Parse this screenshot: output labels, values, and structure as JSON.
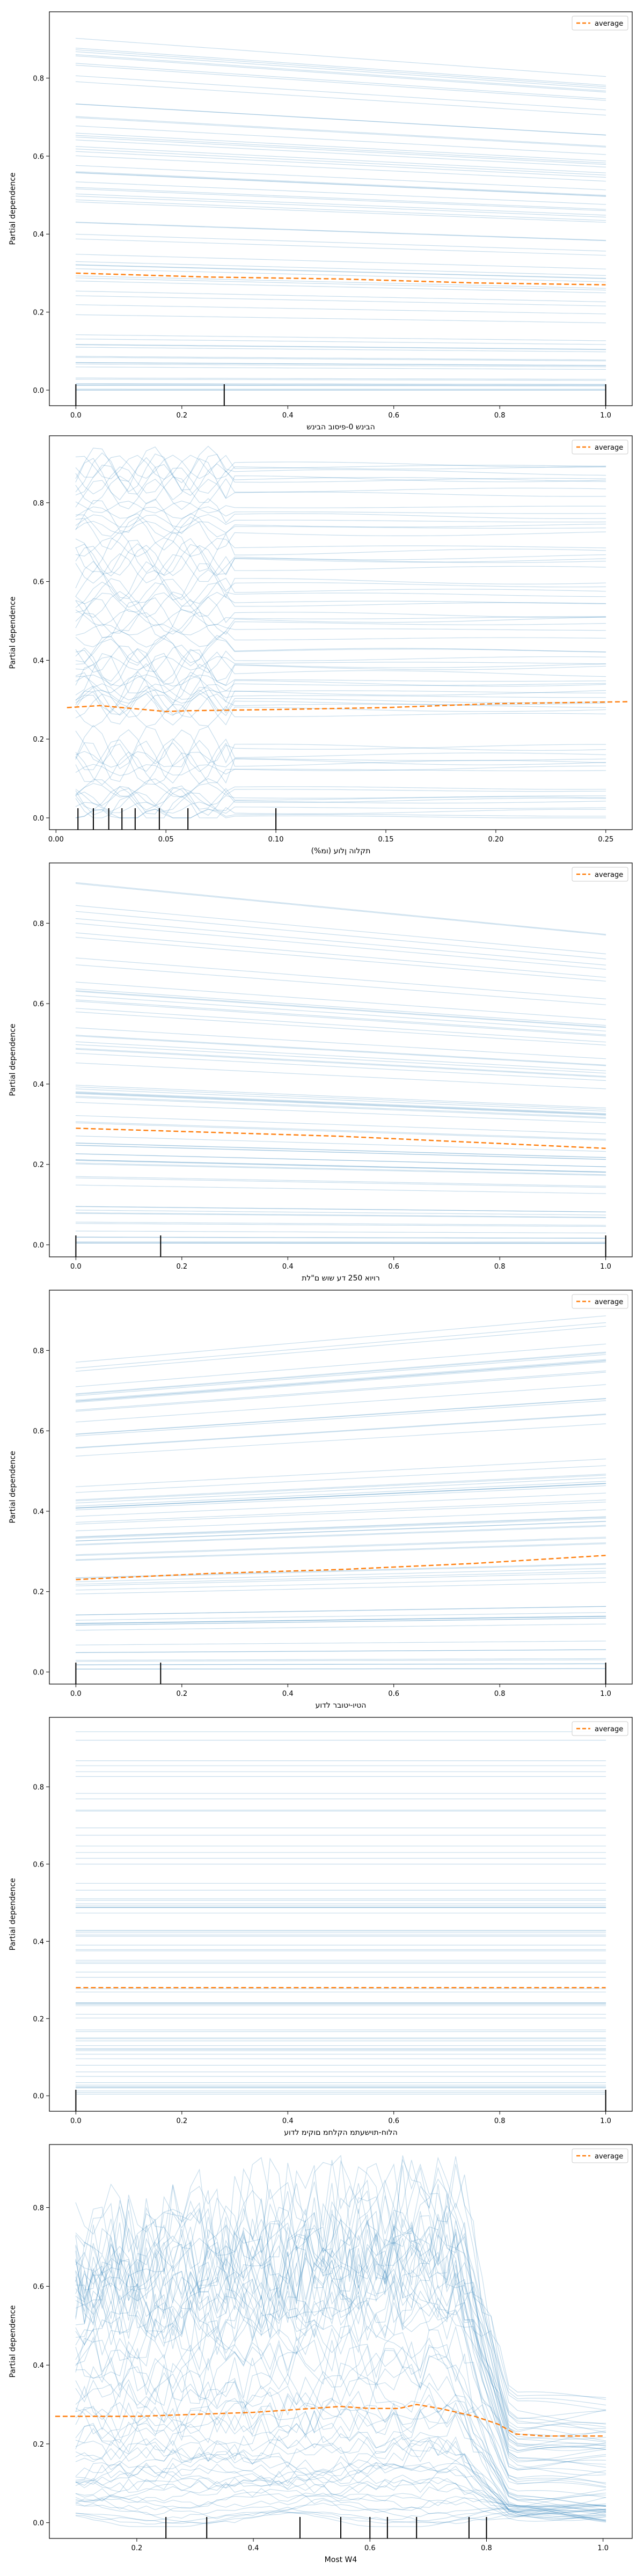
{
  "figure": {
    "legend_label": "average",
    "ylabel": "Partial dependence",
    "ice_color": "#1f77b4",
    "average_color": "#ff7f0e",
    "frame_color": "#000000"
  },
  "chart_data": [
    {
      "type": "line",
      "title": "",
      "xlabel": "הבינש 0-פיסוב הבינש",
      "ylabel": "Partial dependence",
      "xlim": [
        -0.05,
        1.05
      ],
      "ylim": [
        -0.04,
        0.97
      ],
      "xticks": [
        0.0,
        0.2,
        0.4,
        0.6,
        0.8,
        1.0
      ],
      "xtick_labels": [
        "0.0",
        "0.2",
        "0.4",
        "0.6",
        "0.8",
        "1.0"
      ],
      "yticks": [
        0.0,
        0.2,
        0.4,
        0.6,
        0.8
      ],
      "ytick_labels": [
        "0.0",
        "0.2",
        "0.4",
        "0.6",
        "0.8"
      ],
      "legend": "top-right",
      "grid": false,
      "rug": [
        0.0,
        0.28,
        1.0
      ],
      "average": {
        "name": "average",
        "x": [
          0.0,
          0.25,
          0.5,
          0.75,
          1.0
        ],
        "y": [
          0.3,
          0.29,
          0.285,
          0.275,
          0.27
        ]
      },
      "ice": {
        "count": 70,
        "start_range": [
          0.0,
          0.92
        ],
        "end_range": [
          0.0,
          0.82
        ],
        "shape": "linear"
      }
    },
    {
      "type": "line",
      "title": "",
      "xlabel": "(%ומ) תקלוה ןלוע",
      "ylabel": "Partial dependence",
      "xlim": [
        -0.003,
        0.262
      ],
      "ylim": [
        -0.03,
        0.97
      ],
      "xticks": [
        0.0,
        0.05,
        0.1,
        0.15,
        0.2,
        0.25
      ],
      "xtick_labels": [
        "0.00",
        "0.05",
        "0.10",
        "0.15",
        "0.20",
        "0.25"
      ],
      "yticks": [
        0.0,
        0.2,
        0.4,
        0.6,
        0.8
      ],
      "ytick_labels": [
        "0.0",
        "0.2",
        "0.4",
        "0.6",
        "0.8"
      ],
      "legend": "top-right",
      "grid": false,
      "rug": [
        0.01,
        0.017,
        0.024,
        0.03,
        0.036,
        0.047,
        0.06,
        0.1
      ],
      "average": {
        "name": "average",
        "x": [
          0.005,
          0.02,
          0.03,
          0.04,
          0.05,
          0.06,
          0.1,
          0.15,
          0.2,
          0.26
        ],
        "y": [
          0.28,
          0.285,
          0.28,
          0.275,
          0.27,
          0.272,
          0.275,
          0.28,
          0.29,
          0.295
        ]
      },
      "ice": {
        "count": 70,
        "start_range": [
          0.0,
          0.9
        ],
        "end_range": [
          0.0,
          0.9
        ],
        "shape": "wavy-left"
      }
    },
    {
      "type": "line",
      "title": "",
      "xlabel": "רויוא 250 דע שוש ם\"לת",
      "ylabel": "Partial dependence",
      "xlim": [
        -0.05,
        1.05
      ],
      "ylim": [
        -0.03,
        0.95
      ],
      "xticks": [
        0.0,
        0.2,
        0.4,
        0.6,
        0.8,
        1.0
      ],
      "xtick_labels": [
        "0.0",
        "0.2",
        "0.4",
        "0.6",
        "0.8",
        "1.0"
      ],
      "yticks": [
        0.0,
        0.2,
        0.4,
        0.6,
        0.8
      ],
      "ytick_labels": [
        "0.0",
        "0.2",
        "0.4",
        "0.6",
        "0.8"
      ],
      "legend": "top-right",
      "grid": false,
      "rug": [
        0.0,
        0.16,
        1.0
      ],
      "average": {
        "name": "average",
        "x": [
          0.0,
          0.25,
          0.5,
          0.75,
          1.0
        ],
        "y": [
          0.29,
          0.28,
          0.27,
          0.255,
          0.24
        ]
      },
      "ice": {
        "count": 70,
        "start_range": [
          0.0,
          0.91
        ],
        "end_range": [
          0.0,
          0.78
        ],
        "shape": "linear"
      }
    },
    {
      "type": "line",
      "title": "",
      "xlabel": "הטיו-יטובר לדוע",
      "ylabel": "Partial dependence",
      "xlim": [
        -0.05,
        1.05
      ],
      "ylim": [
        -0.03,
        0.95
      ],
      "xticks": [
        0.0,
        0.2,
        0.4,
        0.6,
        0.8,
        1.0
      ],
      "xtick_labels": [
        "0.0",
        "0.2",
        "0.4",
        "0.6",
        "0.8",
        "1.0"
      ],
      "yticks": [
        0.0,
        0.2,
        0.4,
        0.6,
        0.8
      ],
      "ytick_labels": [
        "0.0",
        "0.2",
        "0.4",
        "0.6",
        "0.8"
      ],
      "legend": "top-right",
      "grid": false,
      "rug": [
        0.0,
        0.16,
        1.0
      ],
      "average": {
        "name": "average",
        "x": [
          0.0,
          0.25,
          0.5,
          0.75,
          1.0
        ],
        "y": [
          0.23,
          0.245,
          0.255,
          0.27,
          0.29
        ]
      },
      "ice": {
        "count": 70,
        "start_range": [
          0.0,
          0.8
        ],
        "end_range": [
          0.0,
          0.92
        ],
        "shape": "linear"
      }
    },
    {
      "type": "line",
      "title": "",
      "xlabel": "הלוח-תוישעתמ הקלחמ םוקימ לדוע",
      "ylabel": "Partial dependence",
      "xlim": [
        -0.05,
        1.05
      ],
      "ylim": [
        -0.04,
        0.98
      ],
      "xticks": [
        0.0,
        0.2,
        0.4,
        0.6,
        0.8,
        1.0
      ],
      "xtick_labels": [
        "0.0",
        "0.2",
        "0.4",
        "0.6",
        "0.8",
        "1.0"
      ],
      "yticks": [
        0.0,
        0.2,
        0.4,
        0.6,
        0.8
      ],
      "ytick_labels": [
        "0.0",
        "0.2",
        "0.4",
        "0.6",
        "0.8"
      ],
      "legend": "top-right",
      "grid": false,
      "rug": [
        0.0,
        1.0
      ],
      "average": {
        "name": "average",
        "x": [
          0.0,
          0.25,
          0.5,
          0.75,
          1.0
        ],
        "y": [
          0.28,
          0.28,
          0.28,
          0.28,
          0.28
        ]
      },
      "ice": {
        "count": 70,
        "start_range": [
          0.0,
          0.95
        ],
        "end_range": [
          0.0,
          0.95
        ],
        "shape": "flat"
      }
    },
    {
      "type": "line",
      "title": "",
      "xlabel": "Most W4",
      "ylabel": "Partial dependence",
      "xlim": [
        0.05,
        1.05
      ],
      "ylim": [
        -0.04,
        0.96
      ],
      "xticks": [
        0.2,
        0.4,
        0.6,
        0.8,
        1.0
      ],
      "xtick_labels": [
        "0.2",
        "0.4",
        "0.6",
        "0.8",
        "1.0"
      ],
      "yticks": [
        0.0,
        0.2,
        0.4,
        0.6,
        0.8
      ],
      "ytick_labels": [
        "0.0",
        "0.2",
        "0.4",
        "0.6",
        "0.8"
      ],
      "legend": "top-right",
      "grid": false,
      "rug": [
        0.25,
        0.32,
        0.48,
        0.55,
        0.6,
        0.63,
        0.68,
        0.77,
        0.8
      ],
      "average": {
        "name": "average",
        "x": [
          0.06,
          0.2,
          0.3,
          0.4,
          0.5,
          0.55,
          0.6,
          0.65,
          0.68,
          0.72,
          0.78,
          0.82,
          0.85,
          0.9,
          1.0
        ],
        "y": [
          0.27,
          0.27,
          0.275,
          0.28,
          0.29,
          0.295,
          0.29,
          0.29,
          0.3,
          0.29,
          0.27,
          0.25,
          0.225,
          0.22,
          0.22
        ]
      },
      "ice": {
        "count": 70,
        "start_range": [
          0.0,
          0.88
        ],
        "end_range": [
          0.0,
          0.3
        ],
        "shape": "hump-drop"
      }
    }
  ]
}
